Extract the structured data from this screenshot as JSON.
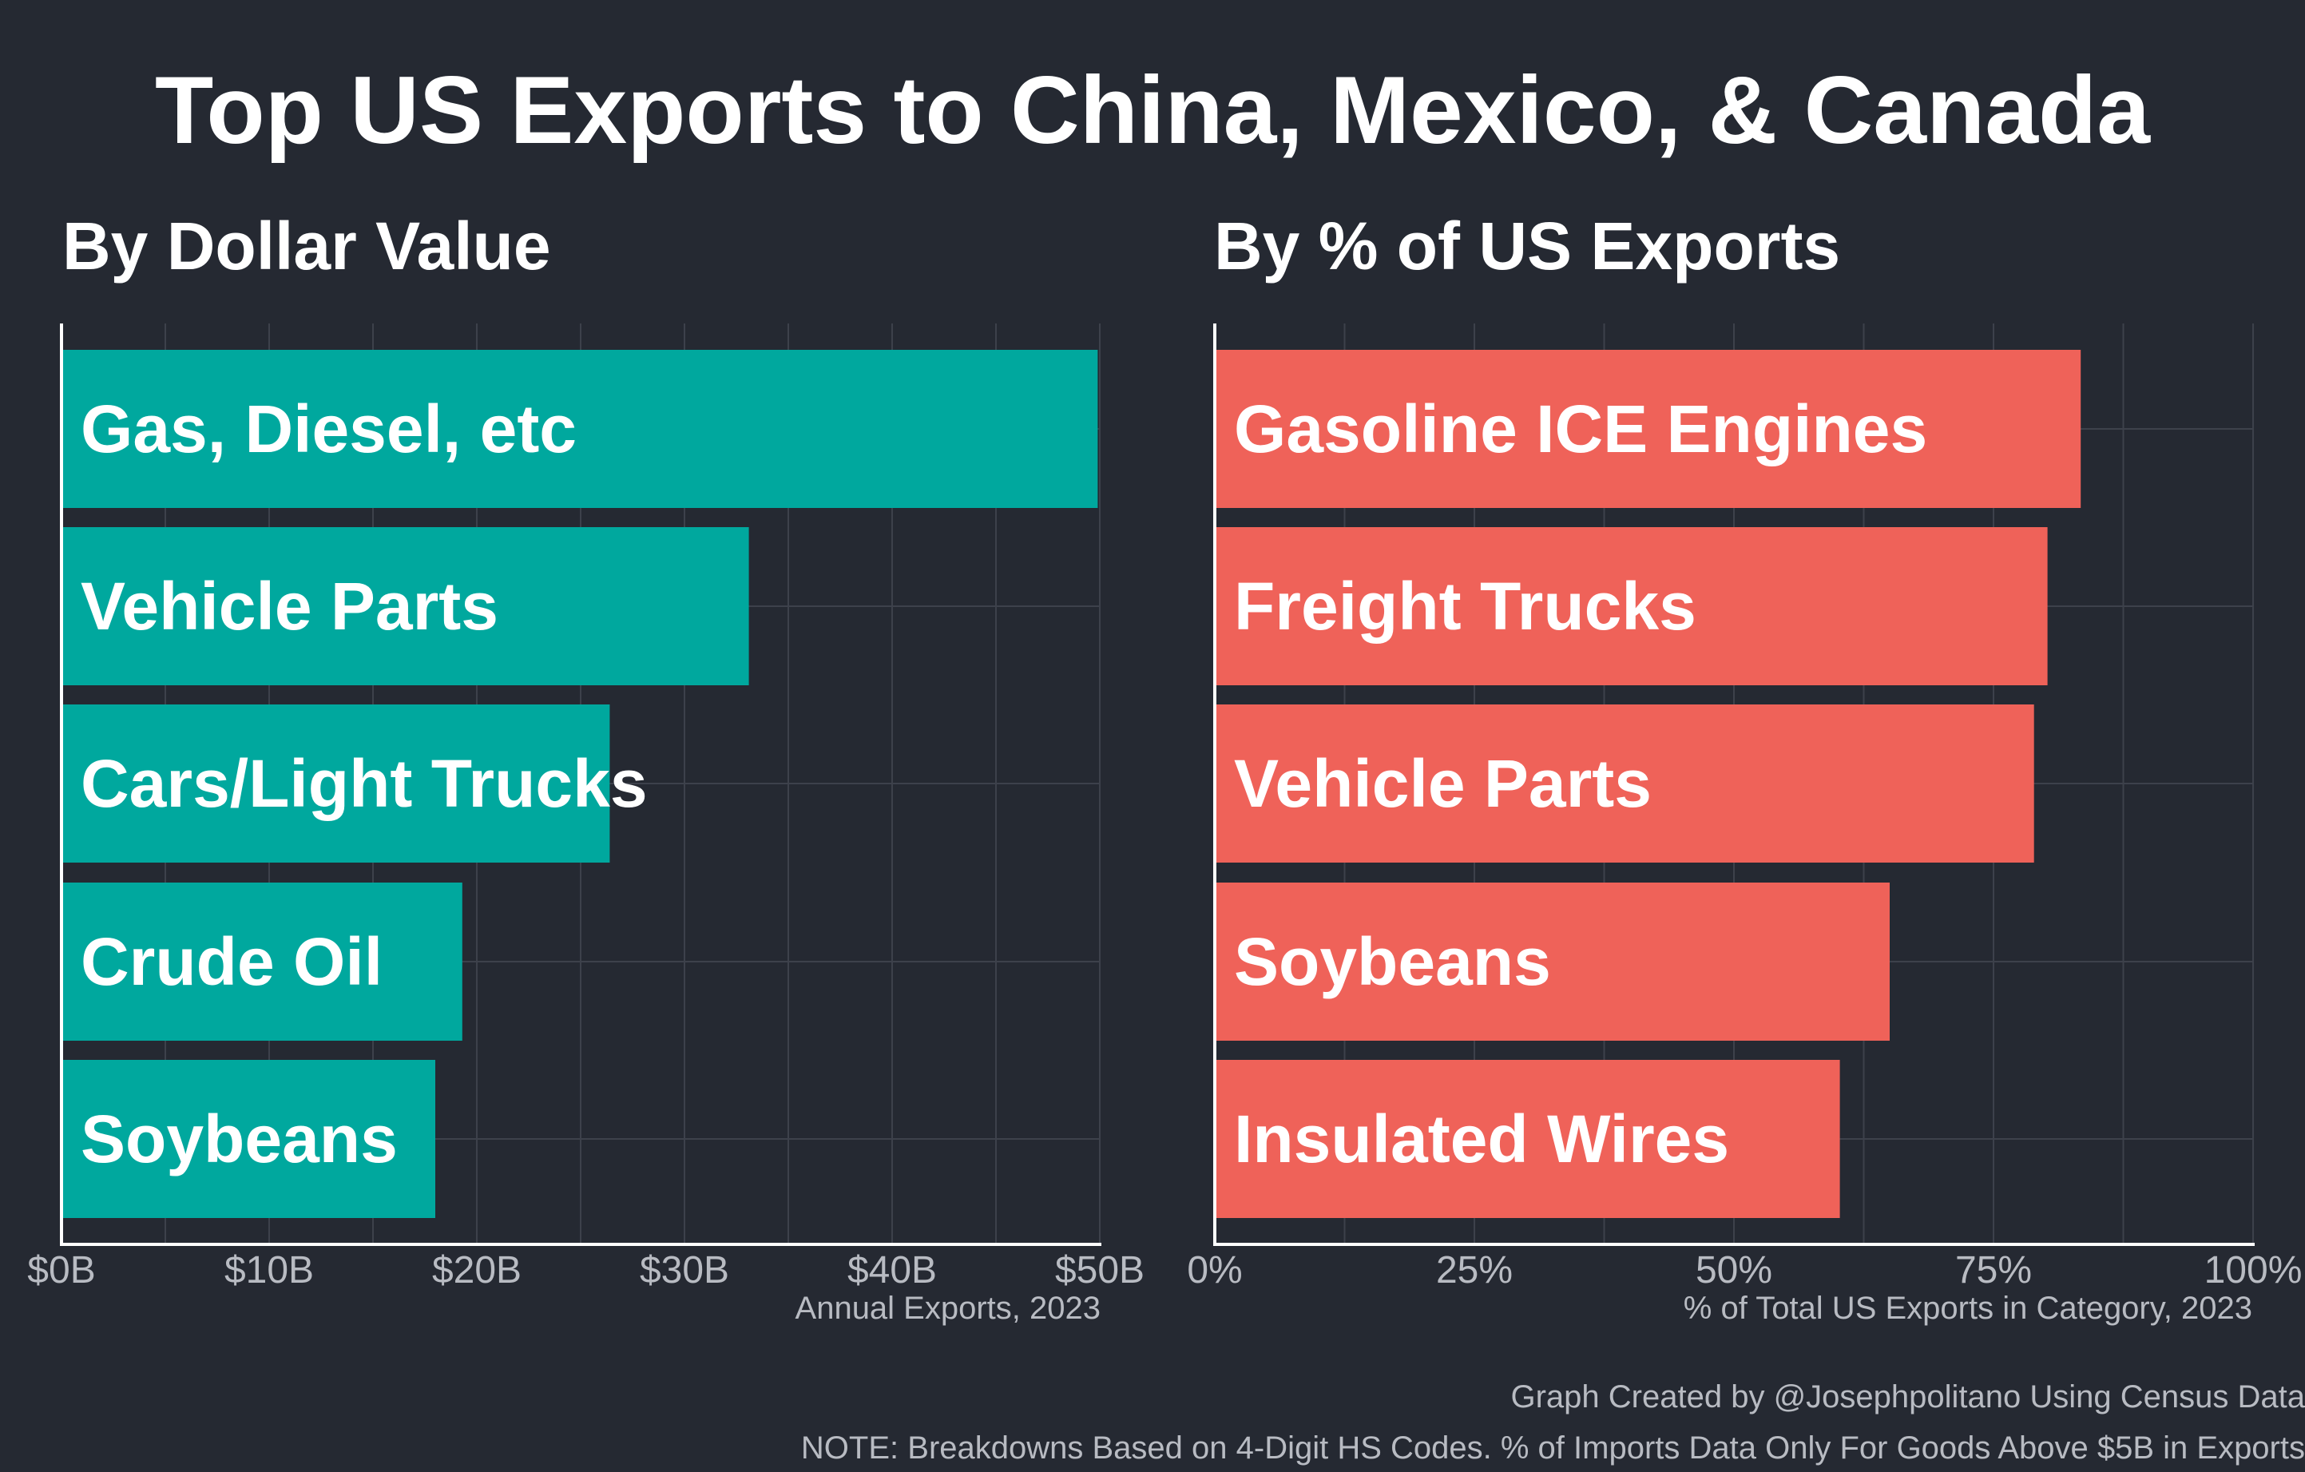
{
  "title": "Top US Exports to China, Mexico, & Canada",
  "colors": {
    "background": "#252932",
    "grid": "#3d414b",
    "left_bar": "#00a89e",
    "right_bar": "#ef6259",
    "text": "#ffffff",
    "muted": "#b8bbc2"
  },
  "chart_data": [
    {
      "type": "bar",
      "orientation": "horizontal",
      "title": "By Dollar Value",
      "categories": [
        "Gas, Diesel, etc",
        "Vehicle Parts",
        "Cars/Light Trucks",
        "Crude Oil",
        "Soybeans"
      ],
      "values": [
        49.9,
        33.1,
        26.4,
        19.3,
        18.0
      ],
      "xlim": [
        0,
        50
      ],
      "ticks": [
        0,
        10,
        20,
        30,
        40,
        50
      ],
      "tick_labels": [
        "$0B",
        "$10B",
        "$20B",
        "$30B",
        "$40B",
        "$50B"
      ],
      "xlabel": "Annual Exports, 2023",
      "grid": true
    },
    {
      "type": "bar",
      "orientation": "horizontal",
      "title": "By % of US Exports",
      "categories": [
        "Gasoline ICE Engines",
        "Freight Trucks",
        "Vehicle Parts",
        "Soybeans",
        "Insulated Wires"
      ],
      "values": [
        83.4,
        80.2,
        78.9,
        65.0,
        60.2
      ],
      "xlim": [
        0,
        100
      ],
      "ticks": [
        0,
        25,
        50,
        75,
        100
      ],
      "tick_labels": [
        "0%",
        "25%",
        "50%",
        "75%",
        "100%"
      ],
      "xlabel": "% of Total US Exports in Category, 2023",
      "grid": true
    }
  ],
  "footer": {
    "credit": "Graph Created by @Josephpolitano Using Census Data",
    "note": "NOTE: Breakdowns Based on 4-Digit HS Codes. % of Imports Data Only For Goods Above $5B in Exports"
  }
}
